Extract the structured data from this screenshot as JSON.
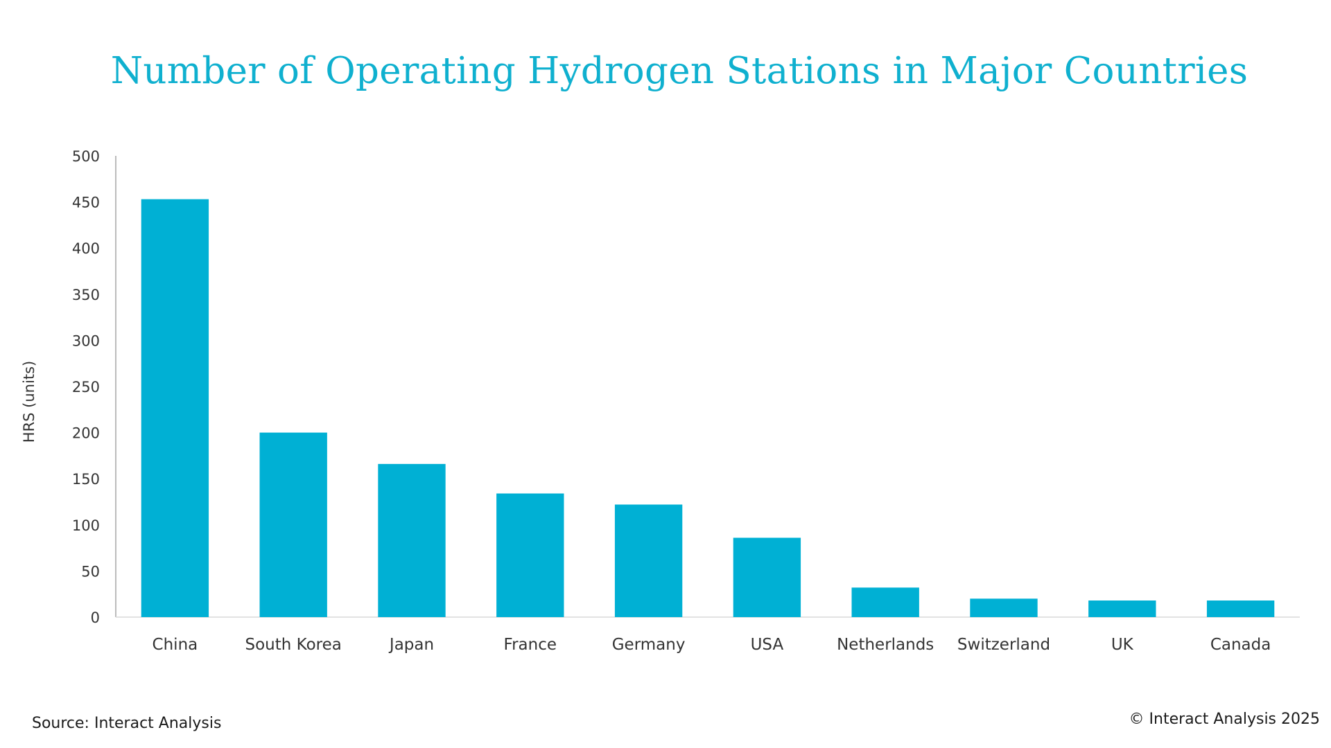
{
  "chart_data": {
    "type": "bar",
    "title": "Number of Operating Hydrogen Stations in Major Countries",
    "xlabel": "",
    "ylabel": "HRS (units)",
    "categories": [
      "China",
      "South Korea",
      "Japan",
      "France",
      "Germany",
      "USA",
      "Netherlands",
      "Switzerland",
      "UK",
      "Canada"
    ],
    "values": [
      453,
      200,
      166,
      134,
      122,
      86,
      32,
      20,
      18,
      18
    ],
    "ylim": [
      0,
      500
    ],
    "yticks": [
      0,
      50,
      100,
      150,
      200,
      250,
      300,
      350,
      400,
      450,
      500
    ],
    "grid": false,
    "legend": "none",
    "bar_color": "#00b0d4",
    "title_color": "#0fb0cf"
  },
  "footer": {
    "source": "Source: Interact Analysis",
    "copyright": "© Interact Analysis 2025"
  }
}
